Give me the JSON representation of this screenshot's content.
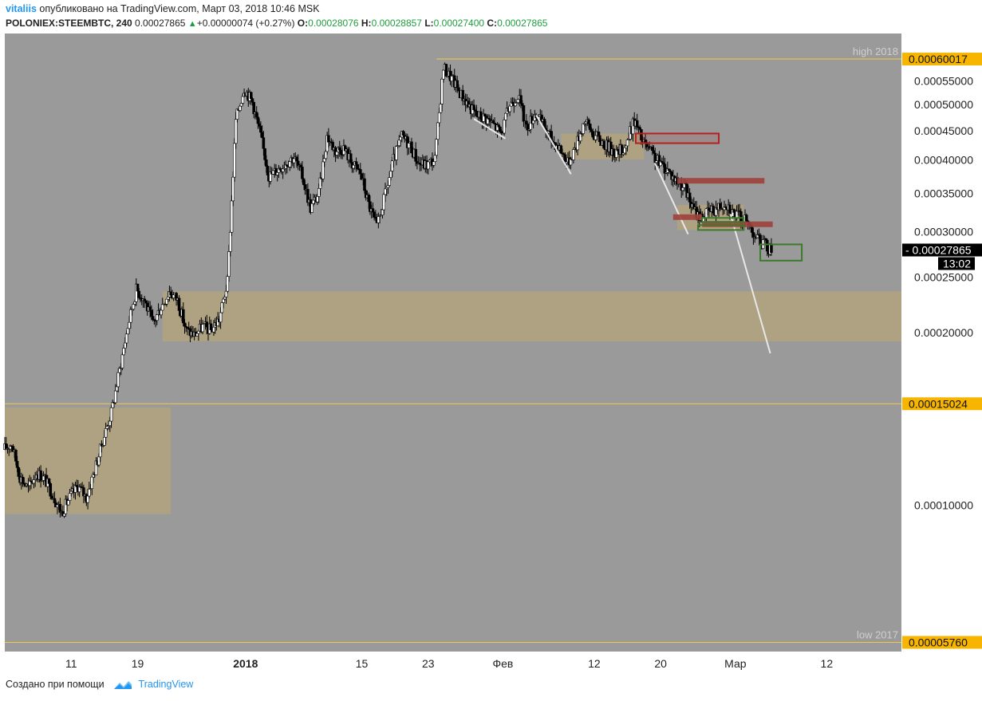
{
  "header": {
    "user": "vitaliis",
    "published": "опубликовано на TradingView.com, Март 03, 2018 10:46 MSK",
    "symbol": "POLONIEX:STEEMBTC, 240",
    "last": "0.00027865",
    "change": "+0.00000074 (+0.27%)",
    "o_label": "O:",
    "o_value": "0.00028076",
    "h_label": "H:",
    "h_value": "0.00028857",
    "l_label": "L:",
    "l_value": "0.00027400",
    "c_label": "C:",
    "c_value": "0.00027865"
  },
  "footer": {
    "created_with": "Создано при помощи",
    "brand": "TradingView"
  },
  "colors": {
    "plot_bg": "#9a9a9a",
    "candle": "#000000",
    "zone": "#b4a47a",
    "level_line": "#f2c94c",
    "level_box": "#f7b500",
    "red_box": "#b22222",
    "red_bar": "#a0403c",
    "green_box": "#3a7a2a",
    "trend_line": "#e8e8e8"
  },
  "chart_data": {
    "type": "candlestick",
    "title": "",
    "y_min": 5.75e-05,
    "y_max": 0.00064,
    "y_ticks": [
      "0.00010000",
      "0.00020000",
      "0.00025000",
      "0.00030000",
      "0.00035000",
      "0.00040000",
      "0.00045000",
      "0.00050000",
      "0.00055000"
    ],
    "x_ticks": [
      {
        "day": 11,
        "label": "11"
      },
      {
        "day": 19,
        "label": "19"
      },
      {
        "day": 32,
        "label": "2018"
      },
      {
        "day": 46,
        "label": "15"
      },
      {
        "day": 54,
        "label": "23"
      },
      {
        "day": 63,
        "label": "Фев"
      },
      {
        "day": 74,
        "label": "12"
      },
      {
        "day": 82,
        "label": "20"
      },
      {
        "day": 91,
        "label": "Мар"
      },
      {
        "day": 102,
        "label": "12"
      }
    ],
    "x_range_days": [
      3,
      111
    ],
    "levels": [
      {
        "name": "high 2018",
        "price": 0.00060017,
        "label": "0.00060017",
        "x_start_day": 55
      },
      {
        "name": "",
        "price": 0.00015024,
        "label": "0.00015024",
        "x_start_day": 3
      },
      {
        "name": "low 2017",
        "price": 5.76e-05,
        "label": "0.00005760",
        "x_start_day": 3
      }
    ],
    "current": {
      "price": 0.00027865,
      "label": "0.00027865",
      "countdown": "13:02"
    },
    "zones": [
      {
        "day_start": 3,
        "day_end": 23,
        "price_low": 9.65e-05,
        "price_high": 0.000148
      },
      {
        "day_start": 22,
        "day_end": 111,
        "price_low": 0.000193,
        "price_high": 0.000236
      },
      {
        "day_start": 70,
        "day_end": 80,
        "price_low": 0.000401,
        "price_high": 0.000445
      },
      {
        "day_start": 84,
        "day_end": 92,
        "price_low": 0.000302,
        "price_high": 0.000334
      }
    ],
    "red_boxes": [
      {
        "day_start": 79,
        "day_end": 89,
        "price_low": 0.000428,
        "price_high": 0.000445
      }
    ],
    "red_bars": [
      {
        "day_start": 84,
        "day_end": 94.5,
        "price": 0.000368
      },
      {
        "day_start": 87,
        "day_end": 95.5,
        "price": 0.000309
      },
      {
        "day_start": 83.5,
        "day_end": 87,
        "price": 0.000318
      }
    ],
    "green_boxes": [
      {
        "day_start": 86.5,
        "day_end": 92,
        "price_low": 0.000302,
        "price_high": 0.000308
      },
      {
        "day_start": 87,
        "day_end": 92,
        "price_low": 0.000312,
        "price_high": 0.000317
      },
      {
        "day_start": 94,
        "day_end": 99,
        "price_low": 0.000267,
        "price_high": 0.000285
      }
    ],
    "trend_lines": [
      {
        "from": [
          59.5,
          0.000472
        ],
        "to": [
          63.3,
          0.000436
        ]
      },
      {
        "from": [
          67,
          0.000479
        ],
        "to": [
          71.2,
          0.000378
        ]
      },
      {
        "from": [
          81.3,
          0.000395
        ],
        "to": [
          85.3,
          0.000297
        ]
      },
      {
        "from": [
          90.4,
          0.000322
        ],
        "to": [
          95.2,
          0.000184
        ]
      }
    ],
    "price_path": [
      [
        3,
        0.000125
      ],
      [
        4,
        0.000128
      ],
      [
        5,
        0.000112
      ],
      [
        6,
        0.000107
      ],
      [
        7,
        0.000114
      ],
      [
        8,
        0.000111
      ],
      [
        9,
        0.000104
      ],
      [
        10,
        9.7e-05
      ],
      [
        11,
        0.000103
      ],
      [
        12,
        0.000108
      ],
      [
        13,
        0.000103
      ],
      [
        14,
        0.000115
      ],
      [
        15,
        0.00013
      ],
      [
        16,
        0.000145
      ],
      [
        17,
        0.000172
      ],
      [
        18,
        0.000205
      ],
      [
        19,
        0.000238
      ],
      [
        20,
        0.000228
      ],
      [
        21,
        0.000207
      ],
      [
        22,
        0.000222
      ],
      [
        23,
        0.000236
      ],
      [
        24,
        0.000228
      ],
      [
        25,
        0.000202
      ],
      [
        26,
        0.000198
      ],
      [
        27,
        0.000205
      ],
      [
        28,
        0.000202
      ],
      [
        29,
        0.000211
      ],
      [
        30,
        0.000245
      ],
      [
        31,
        0.00047
      ],
      [
        32,
        0.000535
      ],
      [
        33,
        0.000505
      ],
      [
        34,
        0.00044
      ],
      [
        35,
        0.000375
      ],
      [
        36,
        0.000385
      ],
      [
        37,
        0.000395
      ],
      [
        38,
        0.000405
      ],
      [
        39,
        0.000375
      ],
      [
        40,
        0.00033
      ],
      [
        41,
        0.00035
      ],
      [
        42,
        0.00044
      ],
      [
        43,
        0.000415
      ],
      [
        44,
        0.00042
      ],
      [
        45,
        0.000395
      ],
      [
        46,
        0.00038
      ],
      [
        47,
        0.000335
      ],
      [
        48,
        0.000305
      ],
      [
        49,
        0.000348
      ],
      [
        50,
        0.0004
      ],
      [
        51,
        0.00044
      ],
      [
        52,
        0.000425
      ],
      [
        53,
        0.000395
      ],
      [
        54,
        0.000392
      ],
      [
        55,
        0.000402
      ],
      [
        56,
        0.00058
      ],
      [
        57,
        0.000555
      ],
      [
        58,
        0.000525
      ],
      [
        59,
        0.0005
      ],
      [
        60,
        0.000478
      ],
      [
        61,
        0.000475
      ],
      [
        62,
        0.000462
      ],
      [
        63,
        0.000445
      ],
      [
        64,
        0.0005
      ],
      [
        65,
        0.00052
      ],
      [
        66,
        0.000455
      ],
      [
        67,
        0.000482
      ],
      [
        68,
        0.000462
      ],
      [
        69,
        0.000435
      ],
      [
        70,
        0.00042
      ],
      [
        71,
        0.000395
      ],
      [
        72,
        0.000425
      ],
      [
        73,
        0.00047
      ],
      [
        74,
        0.000445
      ],
      [
        75,
        0.000432
      ],
      [
        76,
        0.00042
      ],
      [
        77,
        0.00041
      ],
      [
        78,
        0.000425
      ],
      [
        79,
        0.00047
      ],
      [
        80,
        0.00043
      ],
      [
        81,
        0.000412
      ],
      [
        82,
        0.000395
      ],
      [
        83,
        0.000385
      ],
      [
        84,
        0.000368
      ],
      [
        85,
        0.00036
      ],
      [
        86,
        0.00033
      ],
      [
        87,
        0.000318
      ],
      [
        88,
        0.000325
      ],
      [
        89,
        0.00033
      ],
      [
        90,
        0.000338
      ],
      [
        91,
        0.000322
      ],
      [
        92,
        0.000318
      ],
      [
        93,
        0.000305
      ],
      [
        94,
        0.00029
      ],
      [
        95,
        0.000282
      ],
      [
        95.5,
        0.000279
      ]
    ]
  }
}
